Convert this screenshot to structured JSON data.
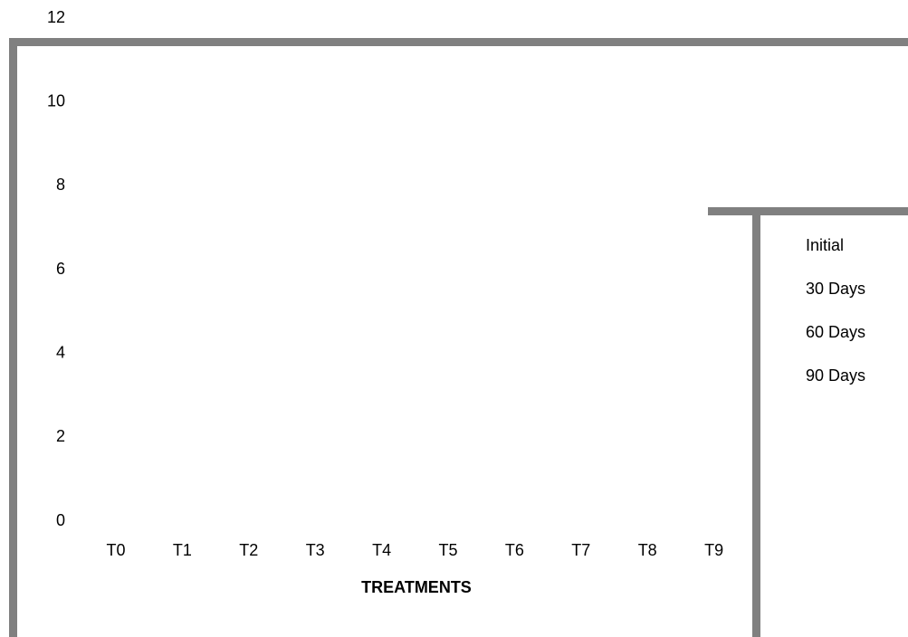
{
  "chart_data": {
    "type": "bar",
    "x_label": "TREATMENTS",
    "categories": [
      "T0",
      "T1",
      "T2",
      "T3",
      "T4",
      "T5",
      "T6",
      "T7",
      "T8",
      "T9"
    ],
    "series": [
      {
        "name": "Initial",
        "values": [
          null,
          null,
          null,
          null,
          null,
          null,
          null,
          null,
          null,
          null
        ]
      },
      {
        "name": "30 Days",
        "values": [
          null,
          null,
          null,
          null,
          null,
          null,
          null,
          null,
          null,
          null
        ]
      },
      {
        "name": "60 Days",
        "values": [
          null,
          null,
          null,
          null,
          null,
          null,
          null,
          null,
          null,
          null
        ]
      },
      {
        "name": "90 Days",
        "values": [
          null,
          null,
          null,
          null,
          null,
          null,
          null,
          null,
          null,
          null
        ]
      }
    ],
    "ylim": [
      0,
      12
    ],
    "yticks": [
      0,
      2,
      4,
      6,
      8,
      10,
      12
    ],
    "grid": false,
    "legend": "right"
  }
}
